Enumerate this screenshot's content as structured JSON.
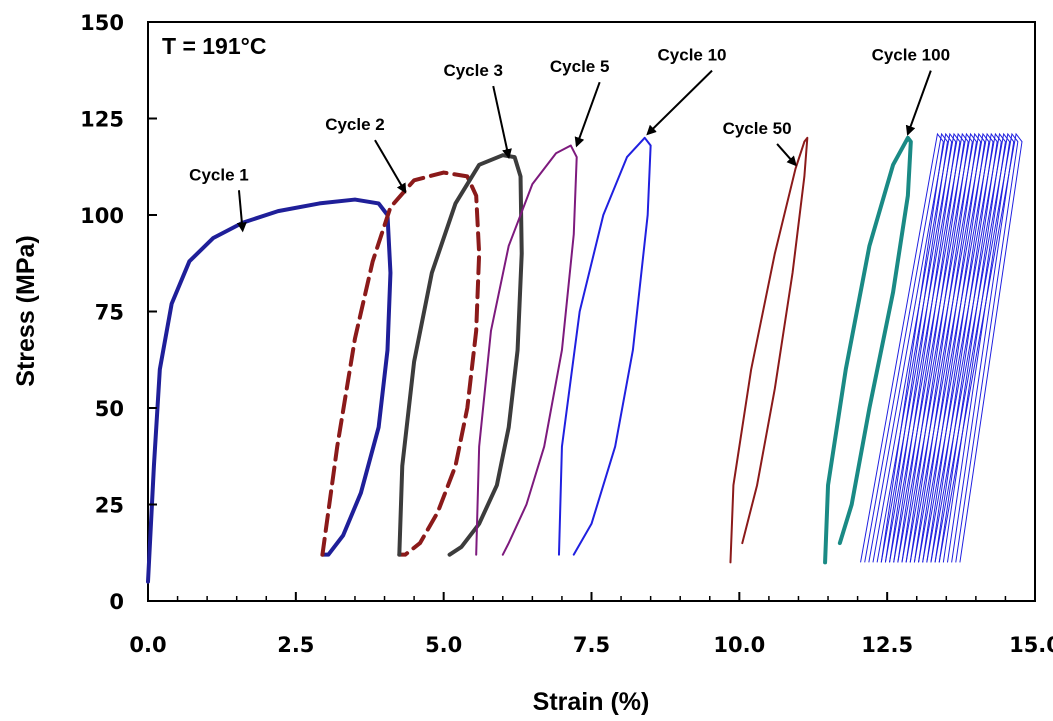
{
  "chart_data": {
    "type": "line",
    "title": "",
    "xlabel": "Strain (%)",
    "ylabel": "Stress (MPa)",
    "xlim": [
      0,
      15
    ],
    "ylim": [
      0,
      150
    ],
    "x_ticks": [
      "0.0",
      "2.5",
      "5.0",
      "7.5",
      "10.0",
      "12.5",
      "15.0"
    ],
    "y_ticks": [
      "0",
      "25",
      "50",
      "75",
      "100",
      "125",
      "150"
    ],
    "temperature_label": "T =  191°C",
    "grid": false,
    "legend": "none",
    "series": [
      {
        "name": "Cycle 1",
        "color": "#1f1f99",
        "dash": false,
        "x": [
          0.0,
          0.1,
          0.2,
          0.4,
          0.7,
          1.1,
          1.6,
          2.2,
          2.9,
          3.5,
          3.9,
          4.05,
          4.1,
          4.05,
          3.9,
          3.6,
          3.3,
          3.05,
          2.95
        ],
        "y": [
          5,
          35,
          60,
          77,
          88,
          94,
          98,
          101,
          103,
          104,
          103,
          100,
          85,
          65,
          45,
          28,
          17,
          12,
          12
        ]
      },
      {
        "name": "Cycle 2",
        "color": "#8b1a1a",
        "dash": true,
        "x": [
          2.95,
          3.2,
          3.5,
          3.8,
          4.1,
          4.5,
          5.0,
          5.4,
          5.55,
          5.6,
          5.55,
          5.4,
          5.2,
          4.9,
          4.6,
          4.35,
          4.25
        ],
        "y": [
          12,
          40,
          68,
          88,
          102,
          109,
          111,
          110,
          105,
          90,
          70,
          50,
          35,
          23,
          15,
          12,
          12
        ]
      },
      {
        "name": "Cycle 3",
        "color": "#3c3c3c",
        "dash": false,
        "x": [
          4.25,
          4.3,
          4.5,
          4.8,
          5.2,
          5.6,
          6.0,
          6.2,
          6.3,
          6.32,
          6.25,
          6.1,
          5.9,
          5.6,
          5.3,
          5.1
        ],
        "y": [
          12,
          35,
          62,
          85,
          103,
          113,
          115.5,
          115,
          110,
          90,
          65,
          45,
          30,
          20,
          14,
          12
        ]
      },
      {
        "name": "Cycle 5",
        "color": "#7d1a7d",
        "dash": false,
        "x": [
          5.55,
          5.6,
          5.8,
          6.1,
          6.5,
          6.9,
          7.15,
          7.25,
          7.2,
          7.0,
          6.7,
          6.4,
          6.1,
          6.0
        ],
        "y": [
          12,
          40,
          70,
          92,
          108,
          116,
          118,
          115,
          95,
          65,
          40,
          25,
          15,
          12
        ]
      },
      {
        "name": "Cycle 10",
        "color": "#2020e0",
        "dash": false,
        "x": [
          6.95,
          7.0,
          7.3,
          7.7,
          8.1,
          8.4,
          8.5,
          8.45,
          8.2,
          7.9,
          7.5,
          7.2
        ],
        "y": [
          12,
          40,
          75,
          100,
          115,
          120,
          118,
          100,
          65,
          40,
          20,
          12
        ]
      },
      {
        "name": "Cycle 50",
        "color": "#8b1a1a",
        "dash": false,
        "x": [
          9.85,
          9.9,
          10.2,
          10.6,
          10.95,
          11.1,
          11.15,
          11.1,
          10.9,
          10.6,
          10.3,
          10.05
        ],
        "y": [
          10,
          30,
          60,
          90,
          112,
          119,
          120,
          110,
          85,
          55,
          30,
          15
        ]
      },
      {
        "name": "Cycle 100",
        "color": "#1a8a85",
        "dash": false,
        "x": [
          11.45,
          11.5,
          11.8,
          12.2,
          12.6,
          12.85,
          12.9,
          12.85,
          12.6,
          12.2,
          11.9,
          11.7
        ],
        "y": [
          10,
          30,
          60,
          92,
          113,
          120,
          119,
          105,
          80,
          50,
          25,
          15
        ]
      }
    ],
    "later_cycles": {
      "color": "#2020e0",
      "x_start": [
        12.05,
        12.12,
        12.19,
        12.26,
        12.33,
        12.4,
        12.47,
        12.54,
        12.61,
        12.68,
        12.75,
        12.82,
        12.89,
        12.96,
        13.03,
        13.1,
        13.17,
        13.24,
        13.31,
        13.38
      ],
      "x_peak": [
        13.45,
        13.52,
        13.59,
        13.66,
        13.73,
        13.8,
        13.87,
        13.94,
        14.01,
        14.08,
        14.15,
        14.22,
        14.29,
        14.36,
        14.43,
        14.5,
        14.57,
        14.64,
        14.71,
        14.78
      ],
      "y_min": 10,
      "y_max": 121
    },
    "annotations": [
      {
        "text": "Cycle 1",
        "label_x": 1.2,
        "label_y": 109,
        "arrow_to": [
          1.6,
          96
        ]
      },
      {
        "text": "Cycle 2",
        "label_x": 3.5,
        "label_y": 122,
        "arrow_to": [
          4.35,
          106
        ]
      },
      {
        "text": "Cycle 3",
        "label_x": 5.5,
        "label_y": 136,
        "arrow_to": [
          6.1,
          115
        ]
      },
      {
        "text": "Cycle 5",
        "label_x": 7.3,
        "label_y": 137,
        "arrow_to": [
          7.25,
          118
        ]
      },
      {
        "text": "Cycle 10",
        "label_x": 9.2,
        "label_y": 140,
        "arrow_to": [
          8.45,
          121
        ]
      },
      {
        "text": "Cycle 50",
        "label_x": 10.3,
        "label_y": 121,
        "arrow_to": [
          10.95,
          113
        ]
      },
      {
        "text": "Cycle 100",
        "label_x": 12.9,
        "label_y": 140,
        "arrow_to": [
          12.85,
          121
        ]
      }
    ]
  }
}
